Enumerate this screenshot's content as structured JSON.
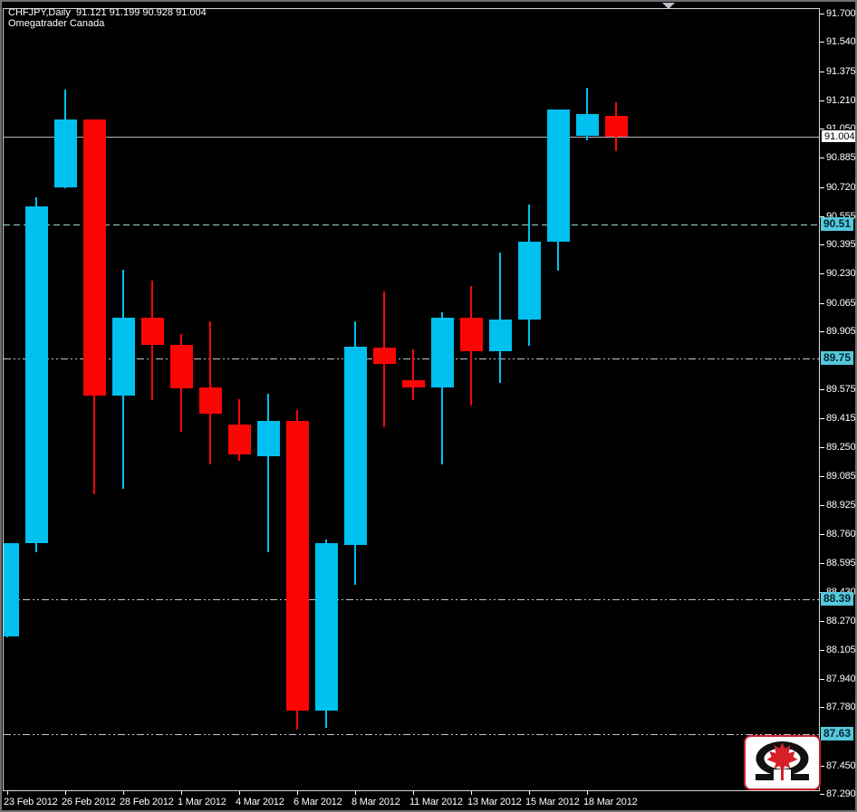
{
  "window": {
    "title_line1": "CHFJPY,Daily  91.121 91.199 90.928 91.004",
    "title_line2": "Omegatrader Canada"
  },
  "colors": {
    "background": "#000000",
    "bull": "#00c0f0",
    "bear": "#fb0505",
    "axis_text": "#ffffff",
    "chart_border": "#d9d9d9",
    "current_price_line": "#b4b4c4",
    "cyan_level_line": "#9adada",
    "gray_level_line": "#c4c4d0",
    "level_label_bg": "#55c8dd",
    "logo_border_red": "#c32334"
  },
  "chart_data": {
    "type": "candlestick",
    "symbol": "CHFJPY",
    "timeframe": "Daily",
    "title": "CHFJPY,Daily  91.121 91.199 90.928 91.004",
    "watermark": "Omegatrader Canada",
    "ohlc_display": {
      "open": "91.121",
      "high": "91.199",
      "low": "90.928",
      "close": "91.004"
    },
    "ylim": [
      87.29,
      91.7
    ],
    "grid": "off",
    "y_ticks": [
      "91.700",
      "91.540",
      "91.375",
      "91.210",
      "91.050",
      "90.885",
      "90.720",
      "90.555",
      "90.395",
      "90.230",
      "90.065",
      "89.905",
      "89.575",
      "89.415",
      "89.250",
      "89.085",
      "88.925",
      "88.760",
      "88.595",
      "88.430",
      "88.270",
      "88.105",
      "87.940",
      "87.780",
      "87.450",
      "87.290"
    ],
    "x_labels": [
      "23 Feb 2012",
      "26 Feb 2012",
      "28 Feb 2012",
      "1 Mar 2012",
      "4 Mar 2012",
      "6 Mar 2012",
      "8 Mar 2012",
      "11 Mar 2012",
      "13 Mar 2012",
      "15 Mar 2012",
      "18 Mar 2012"
    ],
    "levels": [
      {
        "price": 91.004,
        "label": "91.004",
        "style": "solid",
        "color": "#b4b4c4",
        "label_bg": "#ffffff",
        "label_fg": "#000000"
      },
      {
        "price": 90.51,
        "label": "90.51",
        "style": "dashed",
        "color": "#9adada",
        "label_bg": "#55c8dd",
        "label_fg": "#06262e"
      },
      {
        "price": 89.75,
        "label": "89.75",
        "style": "dashdotdot",
        "color": "#c4c4d0",
        "label_bg": "#55c8dd",
        "label_fg": "#06262e"
      },
      {
        "price": 88.39,
        "label": "88.39",
        "style": "dashdotdot",
        "color": "#c4c4d0",
        "label_bg": "#55c8dd",
        "label_fg": "#06262e"
      },
      {
        "price": 87.63,
        "label": "87.63",
        "style": "dashdotdot",
        "color": "#c4c4d0",
        "label_bg": "#55c8dd",
        "label_fg": "#06262e"
      }
    ],
    "candles": [
      {
        "date": "23 Feb 2012",
        "o": 88.18,
        "h": 88.71,
        "l": 88.18,
        "c": 88.71
      },
      {
        "date": "24 Feb 2012",
        "o": 88.71,
        "h": 90.66,
        "l": 88.66,
        "c": 90.61
      },
      {
        "date": "26 Feb 2012",
        "o": 90.72,
        "h": 91.27,
        "l": 90.72,
        "c": 91.1
      },
      {
        "date": "27 Feb 2012",
        "o": 91.1,
        "h": 91.1,
        "l": 88.99,
        "c": 89.54
      },
      {
        "date": "28 Feb 2012",
        "o": 89.54,
        "h": 90.25,
        "l": 89.02,
        "c": 89.98
      },
      {
        "date": "29 Feb 2012",
        "o": 89.98,
        "h": 90.19,
        "l": 89.52,
        "c": 89.83
      },
      {
        "date": "1 Mar 2012",
        "o": 89.83,
        "h": 89.89,
        "l": 89.34,
        "c": 89.58
      },
      {
        "date": "2 Mar 2012",
        "o": 89.59,
        "h": 89.96,
        "l": 89.16,
        "c": 89.44
      },
      {
        "date": "4 Mar 2012",
        "o": 89.38,
        "h": 89.52,
        "l": 89.18,
        "c": 89.21
      },
      {
        "date": "5 Mar 2012",
        "o": 89.2,
        "h": 89.55,
        "l": 88.66,
        "c": 89.4
      },
      {
        "date": "6 Mar 2012",
        "o": 89.4,
        "h": 89.46,
        "l": 87.66,
        "c": 87.76
      },
      {
        "date": "7 Mar 2012",
        "o": 87.76,
        "h": 88.73,
        "l": 87.67,
        "c": 88.71
      },
      {
        "date": "8 Mar 2012",
        "o": 88.7,
        "h": 89.96,
        "l": 88.48,
        "c": 89.82
      },
      {
        "date": "9 Mar 2012",
        "o": 89.81,
        "h": 90.13,
        "l": 89.37,
        "c": 89.72
      },
      {
        "date": "11 Mar 2012",
        "o": 89.63,
        "h": 89.8,
        "l": 89.52,
        "c": 89.59
      },
      {
        "date": "12 Mar 2012",
        "o": 89.59,
        "h": 90.01,
        "l": 89.16,
        "c": 89.98
      },
      {
        "date": "13 Mar 2012",
        "o": 89.98,
        "h": 90.16,
        "l": 89.49,
        "c": 89.79
      },
      {
        "date": "14 Mar 2012",
        "o": 89.79,
        "h": 90.35,
        "l": 89.62,
        "c": 89.97
      },
      {
        "date": "15 Mar 2012",
        "o": 89.97,
        "h": 90.62,
        "l": 89.83,
        "c": 90.41
      },
      {
        "date": "16 Mar 2012",
        "o": 90.41,
        "h": 91.16,
        "l": 90.25,
        "c": 91.16
      },
      {
        "date": "18 Mar 2012",
        "o": 91.01,
        "h": 91.28,
        "l": 90.99,
        "c": 91.13
      },
      {
        "date": "19 Mar 2012",
        "o": 91.121,
        "h": 91.199,
        "l": 90.928,
        "c": 91.004
      }
    ]
  }
}
